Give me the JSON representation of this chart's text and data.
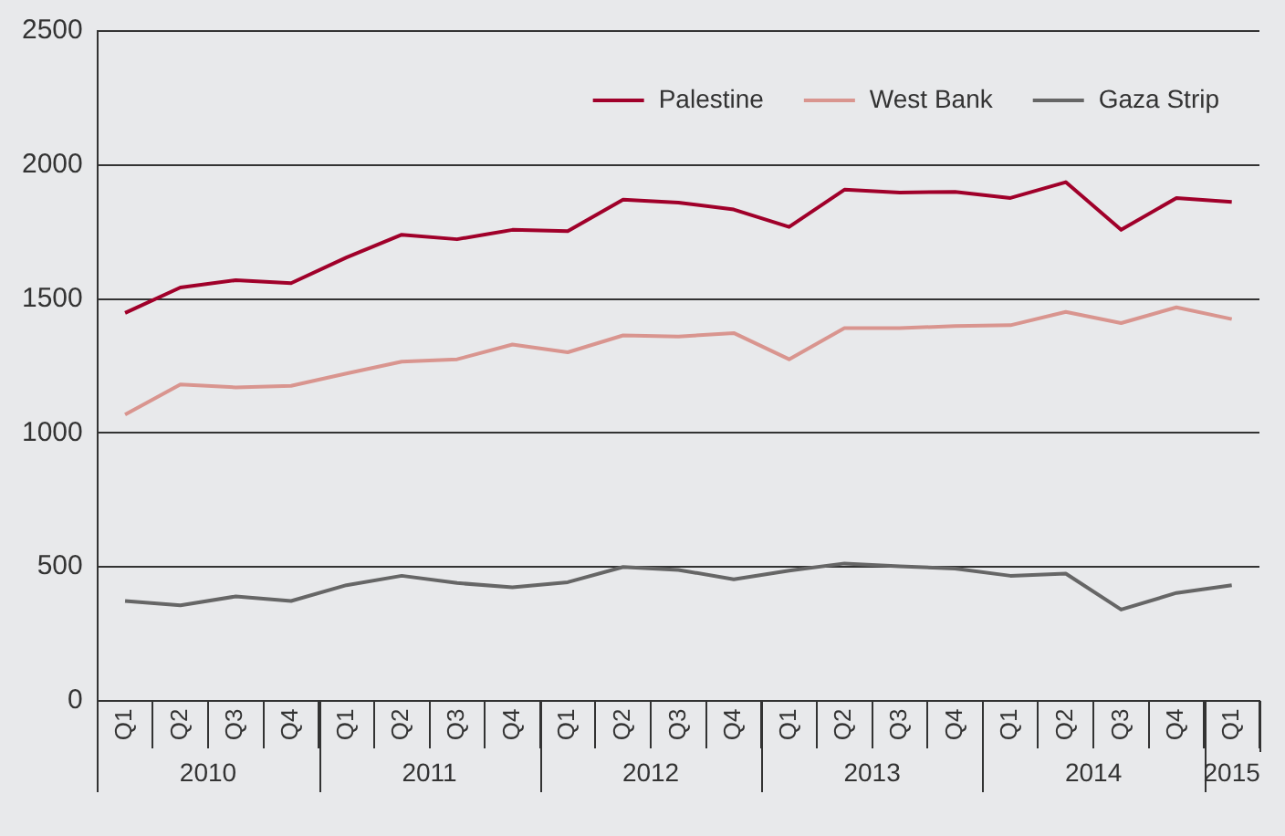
{
  "chart_data": {
    "type": "line",
    "categories": [
      "Q1",
      "Q2",
      "Q3",
      "Q4",
      "Q1",
      "Q2",
      "Q3",
      "Q4",
      "Q1",
      "Q2",
      "Q3",
      "Q4",
      "Q1",
      "Q2",
      "Q3",
      "Q4",
      "Q1",
      "Q2",
      "Q3",
      "Q4",
      "Q1"
    ],
    "annotations": [
      "2010",
      "2011",
      "2012",
      "2013",
      "2014",
      "2015"
    ],
    "series": [
      {
        "name": "Palestine",
        "color": "#a0002a",
        "values": [
          1448,
          1543,
          1570,
          1559,
          1655,
          1740,
          1723,
          1758,
          1753,
          1871,
          1860,
          1834,
          1769,
          1908,
          1897,
          1900,
          1877,
          1936,
          1758,
          1877,
          1862
        ]
      },
      {
        "name": "West Bank",
        "color": "#d9958f",
        "values": [
          1069,
          1181,
          1170,
          1176,
          1222,
          1266,
          1275,
          1330,
          1301,
          1364,
          1360,
          1373,
          1275,
          1391,
          1391,
          1399,
          1402,
          1452,
          1410,
          1469,
          1425
        ]
      },
      {
        "name": "Gaza Strip",
        "color": "#666666",
        "values": [
          373,
          357,
          390,
          373,
          432,
          467,
          440,
          424,
          443,
          500,
          489,
          454,
          486,
          513,
          502,
          494,
          467,
          475,
          341,
          403,
          432
        ]
      }
    ],
    "ylim": [
      0,
      2500
    ],
    "yticks": [
      0,
      500,
      1000,
      1500,
      2000,
      2500
    ],
    "grid": "y",
    "legend": "top right",
    "marker": "none",
    "line_style": "solid"
  }
}
